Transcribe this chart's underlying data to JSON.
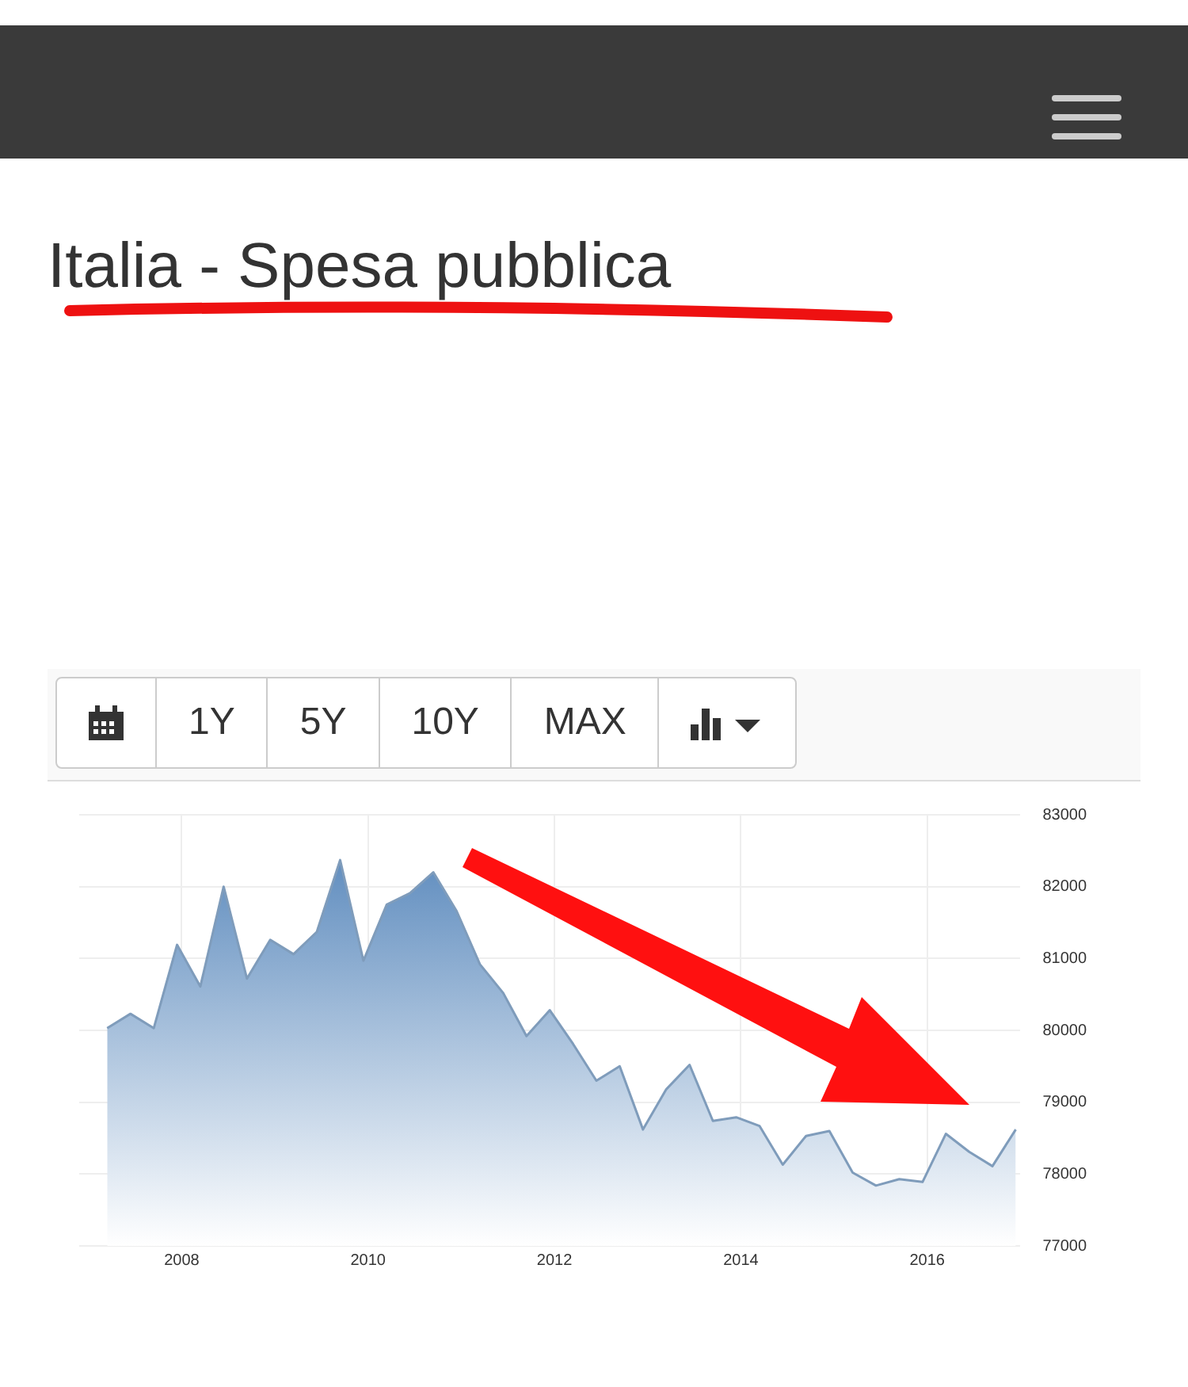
{
  "chart_data": {
    "type": "area",
    "title": "Italia - Spesa pubblica",
    "annotations": [
      "1Y",
      "5Y",
      "10Y",
      "MAX"
    ],
    "x": [
      2007.2,
      2007.45,
      2007.7,
      2007.95,
      2008.2,
      2008.45,
      2008.7,
      2008.95,
      2009.2,
      2009.45,
      2009.7,
      2009.95,
      2010.2,
      2010.45,
      2010.7,
      2010.95,
      2011.2,
      2011.45,
      2011.7,
      2011.95,
      2012.2,
      2012.45,
      2012.7,
      2012.95,
      2013.2,
      2013.45,
      2013.7,
      2013.95,
      2014.2,
      2014.45,
      2014.7,
      2014.95,
      2015.2,
      2015.45,
      2015.7,
      2015.95,
      2016.2,
      2016.45,
      2016.7,
      2016.95
    ],
    "series": [
      {
        "color": "#4f81b8",
        "values": [
          80030,
          80230,
          80030,
          81190,
          80610,
          82000,
          80720,
          81260,
          81060,
          81370,
          82370,
          80970,
          81750,
          81910,
          82200,
          81660,
          80920,
          80520,
          79920,
          80280,
          79810,
          79300,
          79500,
          78620,
          79180,
          79520,
          78740,
          78790,
          78670,
          78130,
          78530,
          78600,
          78020,
          77840,
          77930,
          77890,
          78560,
          78310,
          78110,
          78620
        ]
      }
    ],
    "xlim": [
      2006.9,
      2017
    ],
    "xticks": [
      2008,
      2010,
      2012,
      2014,
      2016
    ],
    "ylim": [
      77000,
      83000
    ],
    "yticks": [
      77000,
      78000,
      79000,
      80000,
      81000,
      82000,
      83000
    ],
    "grid": true,
    "legend": false
  }
}
